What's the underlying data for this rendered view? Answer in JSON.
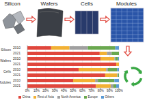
{
  "diagram": {
    "stages": [
      "Silicon",
      "Wafers",
      "Cells",
      "Modules"
    ]
  },
  "chart_data": {
    "type": "bar",
    "orientation": "horizontal",
    "stacked": true,
    "grid": true,
    "groups": [
      "Silicon",
      "Wafers",
      "Cells",
      "Modules"
    ],
    "categories": [
      "2010",
      "2021",
      "2010",
      "2021",
      "2010",
      "2021",
      "2010",
      "2021"
    ],
    "series": [
      {
        "name": "China",
        "color": "#e0463c",
        "values": [
          26,
          79,
          80,
          97,
          56,
          85,
          50,
          75
        ]
      },
      {
        "name": "Rest of Asia",
        "color": "#f2b134",
        "values": [
          20,
          8,
          15,
          3,
          30,
          13,
          24,
          16
        ]
      },
      {
        "name": "North America",
        "color": "#a0a0a0",
        "values": [
          20,
          5,
          1,
          0,
          2,
          1,
          3,
          3
        ]
      },
      {
        "name": "Europe",
        "color": "#6aa84f",
        "values": [
          30,
          8,
          3,
          0,
          10,
          1,
          18,
          3
        ]
      },
      {
        "name": "Others",
        "color": "#5b9bd5",
        "values": [
          4,
          0,
          1,
          0,
          2,
          0,
          5,
          3
        ]
      }
    ],
    "xlim": [
      0,
      100
    ],
    "xticks": [
      {
        "value": 0,
        "label": "0%"
      },
      {
        "value": 10,
        "label": "10%"
      },
      {
        "value": 20,
        "label": "20%"
      },
      {
        "value": 30,
        "label": "30%"
      },
      {
        "value": 40,
        "label": "40%"
      },
      {
        "value": 50,
        "label": "50%"
      },
      {
        "value": 60,
        "label": "60%"
      },
      {
        "value": 70,
        "label": "70%"
      },
      {
        "value": 80,
        "label": "80%"
      },
      {
        "value": 90,
        "label": "90%"
      },
      {
        "value": 100,
        "label": "100%"
      }
    ]
  }
}
